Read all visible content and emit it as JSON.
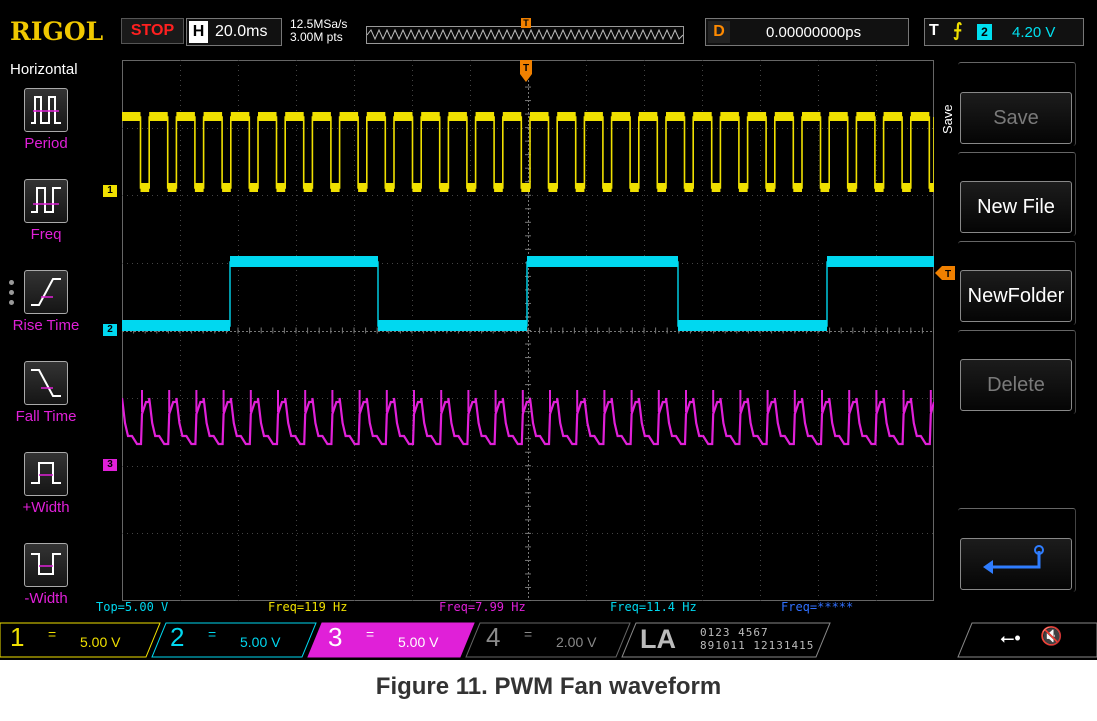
{
  "brand": "RIGOL",
  "run_state": "STOP",
  "horizontal": {
    "tag": "H",
    "timebase": "20.0ms",
    "sample_rate": "12.5MSa/s",
    "memory_depth": "3.00M pts",
    "trigger_marker": "T"
  },
  "delay": {
    "tag": "D",
    "value": "0.00000000ps"
  },
  "trigger": {
    "tag": "T",
    "edge": "rising",
    "source": "2",
    "level": "4.20 V"
  },
  "left_menu": {
    "title": "Horizontal",
    "items": [
      {
        "label": "Period",
        "icon": "period-icon"
      },
      {
        "label": "Freq",
        "icon": "freq-icon"
      },
      {
        "label": "Rise Time",
        "icon": "rise-time-icon"
      },
      {
        "label": "Fall Time",
        "icon": "fall-time-icon"
      },
      {
        "label": "+Width",
        "icon": "pos-width-icon"
      },
      {
        "label": "-Width",
        "icon": "neg-width-icon"
      }
    ]
  },
  "right_menu": {
    "side_label": "Save",
    "softkeys": [
      {
        "label": "Save",
        "enabled": false
      },
      {
        "label": "New File",
        "enabled": true
      },
      {
        "label": "NewFolder",
        "enabled": true
      },
      {
        "label": "Delete",
        "enabled": false
      }
    ],
    "back_icon": "return-arrow-icon"
  },
  "markers": {
    "ch1": "1",
    "ch2": "2",
    "ch3": "3",
    "trigger_level": "T"
  },
  "measurements": [
    {
      "text": "Top=5.00 V",
      "color": "#00d8f0"
    },
    {
      "text": "Freq=119 Hz",
      "color": "#f0e000"
    },
    {
      "text": "Freq=7.99 Hz",
      "color": "#e020d8"
    },
    {
      "text": "Freq=11.4 Hz",
      "color": "#00d8f0"
    },
    {
      "text": "Freq=*****",
      "color": "#3070ff"
    }
  ],
  "channels": [
    {
      "num": "1",
      "coupling": "=",
      "scale": "5.00 V",
      "color": "#f0e000",
      "active": true
    },
    {
      "num": "2",
      "coupling": "=",
      "scale": "5.00 V",
      "color": "#00d8f0",
      "active": true
    },
    {
      "num": "3",
      "coupling": "=",
      "scale": "5.00 V",
      "color": "#e020d8",
      "active": true,
      "selected": true
    },
    {
      "num": "4",
      "coupling": "=",
      "scale": "2.00 V",
      "color": "#8a8a8a",
      "active": false
    }
  ],
  "la": {
    "label": "LA",
    "row1": "0123 4567",
    "row2": "891011 12131415"
  },
  "status_icons": [
    "usb-icon",
    "mute-icon"
  ],
  "caption": "Figure 11. PWM Fan waveform",
  "colors": {
    "ch1": "#f0e000",
    "ch2": "#00d8f0",
    "ch3": "#e020d8",
    "trigger": "#f08000",
    "menu_label": "#e020d8"
  }
}
